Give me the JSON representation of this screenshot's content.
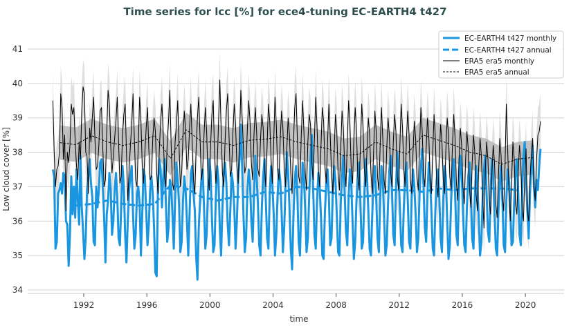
{
  "chart_data": {
    "type": "line",
    "title": "Time series for lcc [%] for ece4-tuning EC-EARTH4 t427",
    "xlabel": "time",
    "ylabel": "Low cloud cover [%]",
    "xlim": [
      1989.5,
      2022.3
    ],
    "ylim": [
      33.9,
      41.6
    ],
    "xticks": [
      "1992",
      "1996",
      "2000",
      "2004",
      "2008",
      "2012",
      "2016",
      "2020"
    ],
    "yticks": [
      "34",
      "35",
      "36",
      "37",
      "38",
      "39",
      "40",
      "41"
    ],
    "grid": "horizontal",
    "legend_position": "top-right",
    "colors": {
      "model": "#1a96e0",
      "obs": "#000000",
      "obs_monthly_band": "#dcdcdc",
      "obs_annual_band": "#a9a9a9"
    },
    "era5_monthly_spread": 0.8,
    "era5_annual_spread": 0.5,
    "monthly_start_year": 1990,
    "series": [
      {
        "name": "EC-EARTH4 t427 monthly",
        "style": "solid-thick",
        "values": [
          37.5,
          37.3,
          35.2,
          35.4,
          36.8,
          36.9,
          37.1,
          36.8,
          37.4,
          37.3,
          36.0,
          35.9,
          34.7,
          35.6,
          37.3,
          36.2,
          37.0,
          36.1,
          37.5,
          36.6,
          35.9,
          37.9,
          36.4,
          35.7,
          34.9,
          35.5,
          36.9,
          37.3,
          37.8,
          37.1,
          36.7,
          35.4,
          35.3,
          37.0,
          36.4,
          36.9,
          37.7,
          37.8,
          37.0,
          36.1,
          34.8,
          36.2,
          36.6,
          37.4,
          36.9,
          35.6,
          36.0,
          36.9,
          37.4,
          36.7,
          35.5,
          35.3,
          36.4,
          37.6,
          37.0,
          35.6,
          34.8,
          36.0,
          36.9,
          37.3,
          37.6,
          36.2,
          35.2,
          35.6,
          36.8,
          37.0,
          36.5,
          35.0,
          36.2,
          37.5,
          37.3,
          36.3,
          35.3,
          35.9,
          36.9,
          37.3,
          36.8,
          35.8,
          34.5,
          34.4,
          37.0,
          37.8,
          37.5,
          36.4,
          37.3,
          37.8,
          36.5,
          35.4,
          35.8,
          37.2,
          37.0,
          36.2,
          35.2,
          36.6,
          37.7,
          37.2,
          36.5,
          35.1,
          35.4,
          36.6,
          37.3,
          36.9,
          36.0,
          35.0,
          36.2,
          37.4,
          37.6,
          36.8,
          36.3,
          35.0,
          34.3,
          35.8,
          36.6,
          37.2,
          37.5,
          36.4,
          35.2,
          35.6,
          36.9,
          37.8,
          37.4,
          36.1,
          35.1,
          35.3,
          36.7,
          37.6,
          37.2,
          35.8,
          35.0,
          36.4,
          37.4,
          37.7,
          37.1,
          35.9,
          35.3,
          36.3,
          37.4,
          37.1,
          36.4,
          35.2,
          36.0,
          37.2,
          37.8,
          38.8,
          37.6,
          36.2,
          35.1,
          35.5,
          36.9,
          37.5,
          37.1,
          36.0,
          35.4,
          36.7,
          37.9,
          37.3,
          36.5,
          35.3,
          35.0,
          36.4,
          37.3,
          37.8,
          36.6,
          35.5,
          35.2,
          36.8,
          37.6,
          37.1,
          36.2,
          35.0,
          35.6,
          36.8,
          37.5,
          37.2,
          36.3,
          35.1,
          35.8,
          37.0,
          38.0,
          37.4,
          36.4,
          35.2,
          34.6,
          36.1,
          37.2,
          37.6,
          36.8,
          35.4,
          35.0,
          36.5,
          37.7,
          37.3,
          36.3,
          35.1,
          35.5,
          36.7,
          37.8,
          38.5,
          37.0,
          35.6,
          35.2,
          36.6,
          37.4,
          37.0,
          36.1,
          35.0,
          34.9,
          36.3,
          37.1,
          37.5,
          36.7,
          35.3,
          35.5,
          36.9,
          37.6,
          37.2,
          36.2,
          35.1,
          35.0,
          36.5,
          37.3,
          37.9,
          36.8,
          35.7,
          35.3,
          36.7,
          37.5,
          37.1,
          36.0,
          34.9,
          35.4,
          36.6,
          37.4,
          37.7,
          36.5,
          35.2,
          35.4,
          36.8,
          37.8,
          37.3,
          36.3,
          35.2,
          35.0,
          36.2,
          37.2,
          37.6,
          36.7,
          35.5,
          35.1,
          36.6,
          37.6,
          37.2,
          36.1,
          35.0,
          35.3,
          36.5,
          37.5,
          37.9,
          36.9,
          35.6,
          35.3,
          36.9,
          38.0,
          37.4,
          36.4,
          35.3,
          35.1,
          36.4,
          37.3,
          37.7,
          36.6,
          35.4,
          35.2,
          36.7,
          37.5,
          37.0,
          36.2,
          35.1,
          35.5,
          36.8,
          37.6,
          38.1,
          37.0,
          35.8,
          35.4,
          36.8,
          37.7,
          37.2,
          36.3,
          35.2,
          35.0,
          36.3,
          37.2,
          37.5,
          36.7,
          35.5,
          35.1,
          36.6,
          37.6,
          37.3,
          36.0,
          34.9,
          35.3,
          36.6,
          37.4,
          37.8,
          36.8,
          35.6,
          35.3,
          36.9,
          37.9,
          37.4,
          36.3,
          35.3,
          35.1,
          36.4,
          37.3,
          37.7,
          36.9,
          35.5,
          35.2,
          36.7,
          37.6,
          37.1,
          36.1,
          35.0,
          35.4,
          36.7,
          37.5,
          37.9,
          36.8,
          35.7,
          35.4,
          36.8,
          37.8,
          37.3,
          36.2,
          35.2,
          35.0,
          36.3,
          37.1,
          37.6,
          36.6,
          35.3,
          35.1,
          36.6,
          37.5,
          37.2,
          36.4,
          35.3,
          35.4,
          36.6,
          37.4,
          37.8,
          36.9,
          35.6,
          35.3,
          36.8,
          37.9,
          38.3,
          37.2,
          36.3,
          35.5,
          36.8,
          37.6,
          38.2,
          37.0,
          36.4,
          37.2,
          36.9,
          37.6,
          38.1
        ]
      },
      {
        "name": "EC-EARTH4 t427 annual",
        "style": "dashed-thick",
        "x": [
          1991,
          1992,
          1993,
          1994,
          1995,
          1996,
          1997,
          1998,
          1999,
          2000,
          2001,
          2002,
          2003,
          2004,
          2005,
          2006,
          2007,
          2008,
          2009,
          2010,
          2011,
          2012,
          2013,
          2014,
          2015,
          2016,
          2017,
          2018,
          2019
        ],
        "values": [
          36.45,
          36.5,
          36.6,
          36.5,
          36.45,
          36.5,
          37.05,
          36.95,
          36.7,
          36.6,
          36.7,
          36.7,
          36.85,
          36.8,
          37.0,
          36.95,
          36.85,
          36.75,
          36.7,
          36.75,
          36.9,
          36.9,
          36.85,
          36.95,
          36.9,
          36.95,
          36.95,
          36.95,
          36.9
        ]
      },
      {
        "name": "ERA5 era5 monthly",
        "style": "solid-thin",
        "values": [
          39.5,
          38.0,
          37.0,
          37.5,
          37.6,
          38.0,
          39.7,
          39.3,
          37.8,
          38.5,
          36.3,
          38.0,
          37.7,
          38.2,
          39.4,
          39.1,
          39.3,
          38.3,
          37.6,
          37.2,
          38.3,
          37.8,
          39.2,
          39.9,
          39.7,
          38.0,
          37.9,
          36.8,
          38.7,
          38.3,
          39.0,
          39.6,
          38.4,
          37.5,
          37.6,
          38.2,
          39.2,
          39.3,
          38.1,
          37.0,
          37.2,
          38.6,
          39.8,
          39.4,
          38.2,
          37.4,
          37.9,
          38.4,
          38.9,
          39.6,
          38.3,
          37.1,
          37.3,
          38.5,
          39.1,
          39.4,
          38.0,
          36.6,
          37.5,
          38.2,
          38.8,
          39.7,
          38.4,
          37.2,
          37.0,
          38.2,
          39.6,
          38.9,
          37.6,
          37.1,
          38.0,
          38.7,
          39.3,
          38.1,
          37.2,
          37.3,
          38.4,
          39.0,
          38.6,
          37.4,
          36.8,
          38.1,
          38.9,
          39.4,
          38.5,
          37.3,
          37.0,
          38.3,
          38.9,
          39.8,
          38.2,
          37.1,
          36.9,
          38.3,
          38.8,
          39.5,
          38.2,
          37.0,
          37.4,
          38.5,
          39.2,
          38.6,
          37.5,
          37.8,
          38.7,
          39.4,
          38.3,
          37.2,
          36.8,
          38.1,
          39.0,
          39.6,
          38.4,
          37.2,
          37.5,
          38.5,
          39.3,
          38.6,
          37.3,
          36.9,
          38.2,
          39.1,
          39.5,
          38.0,
          37.1,
          37.6,
          38.8,
          40.1,
          38.7,
          37.4,
          37.0,
          38.3,
          39.2,
          39.7,
          38.5,
          37.3,
          37.5,
          38.6,
          39.4,
          38.8,
          37.6,
          37.1,
          38.4,
          39.8,
          39.0,
          38.1,
          37.4,
          37.6,
          38.7,
          39.5,
          38.9,
          37.7,
          37.2,
          38.5,
          39.3,
          38.6,
          37.5,
          37.3,
          38.4,
          39.1,
          38.7,
          37.6,
          37.0,
          38.2,
          39.4,
          38.9,
          37.8,
          37.1,
          38.3,
          39.6,
          38.8,
          37.5,
          37.2,
          38.4,
          39.2,
          38.7,
          37.6,
          37.0,
          38.1,
          39.0,
          38.5,
          37.4,
          36.8,
          38.2,
          39.3,
          39.7,
          38.4,
          37.3,
          37.1,
          38.5,
          39.5,
          38.6,
          37.4,
          36.9,
          38.3,
          39.1,
          38.8,
          37.7,
          37.2,
          38.4,
          39.6,
          38.7,
          37.5,
          37.0,
          38.2,
          39.3,
          38.9,
          37.6,
          37.1,
          38.3,
          39.4,
          38.5,
          37.4,
          36.8,
          38.0,
          39.1,
          38.6,
          37.4,
          36.9,
          38.1,
          39.2,
          38.7,
          37.6,
          37.0,
          38.3,
          39.5,
          38.8,
          37.5,
          37.1,
          38.4,
          39.3,
          38.6,
          37.3,
          36.9,
          38.2,
          39.4,
          38.7,
          37.5,
          37.0,
          38.1,
          39.0,
          38.5,
          37.4,
          36.8,
          38.0,
          39.2,
          38.6,
          37.3,
          36.9,
          38.2,
          39.3,
          38.4,
          37.2,
          36.8,
          38.1,
          39.0,
          38.5,
          37.4,
          37.0,
          38.3,
          39.1,
          38.6,
          37.3,
          36.9,
          38.2,
          39.4,
          38.7,
          37.5,
          37.0,
          38.4,
          39.2,
          38.5,
          37.2,
          36.8,
          38.0,
          38.9,
          38.4,
          37.3,
          36.9,
          38.2,
          39.3,
          38.6,
          37.4,
          37.0,
          38.1,
          39.0,
          38.5,
          37.2,
          36.8,
          38.0,
          39.1,
          38.4,
          37.1,
          36.7,
          37.9,
          38.8,
          38.3,
          37.2,
          36.8,
          38.1,
          39.0,
          38.5,
          37.3,
          36.9,
          38.2,
          39.1,
          38.4,
          37.1,
          36.6,
          37.8,
          38.7,
          38.2,
          37.0,
          36.5,
          37.8,
          38.6,
          38.1,
          36.9,
          36.4,
          37.7,
          38.5,
          38.0,
          36.8,
          36.3,
          37.6,
          38.4,
          37.9,
          36.7,
          35.8,
          37.5,
          38.3,
          37.8,
          36.6,
          36.2,
          37.4,
          38.2,
          37.7,
          36.5,
          36.1,
          37.3,
          38.4,
          37.9,
          36.7,
          36.3,
          37.6,
          39.4,
          38.1,
          36.8,
          36.0,
          37.2,
          38.3,
          37.8,
          36.5,
          36.2,
          37.4,
          38.2,
          37.7,
          36.4,
          36.0,
          37.3,
          38.1,
          36.3,
          36.0,
          37.2,
          37.9,
          38.4,
          37.0,
          36.6,
          37.8,
          38.5,
          38.6,
          38.9
        ]
      },
      {
        "name": "ERA5 era5 annual",
        "style": "dashed-thin",
        "x": [
          1990,
          1991,
          1992,
          1993,
          1994,
          1995,
          1996,
          1997,
          1998,
          1999,
          2000,
          2001,
          2002,
          2003,
          2004,
          2005,
          2006,
          2007,
          2008,
          2009,
          2010,
          2011,
          2012,
          2013,
          2014,
          2015,
          2016,
          2017,
          2018,
          2019,
          2020
        ],
        "values": [
          38.28,
          38.22,
          38.48,
          38.3,
          38.2,
          38.3,
          38.48,
          37.82,
          38.65,
          38.3,
          38.3,
          38.2,
          38.35,
          38.38,
          38.45,
          38.3,
          38.2,
          38.1,
          37.9,
          37.95,
          38.3,
          38.1,
          37.95,
          38.5,
          38.35,
          38.2,
          38.0,
          37.9,
          37.65,
          37.8,
          37.85
        ]
      }
    ]
  }
}
